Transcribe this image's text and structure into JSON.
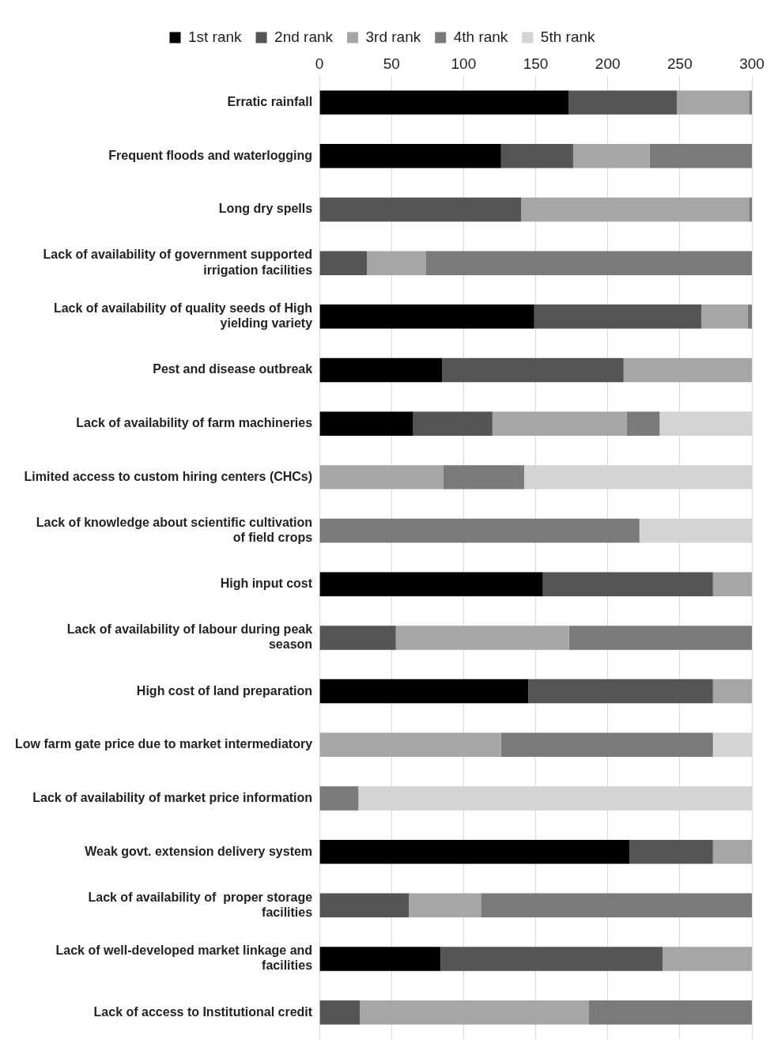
{
  "chart_data": {
    "type": "bar",
    "orientation": "horizontal",
    "stacked": true,
    "categories": [
      "Erratic rainfall",
      "Frequent floods and waterlogging",
      "Long dry spells",
      "Lack of availability of government supported irrigation facilities",
      "Lack of availability of quality seeds of High yielding variety",
      "Pest and disease outbreak",
      "Lack of availability of farm machineries",
      "Limited access to custom hiring centers (CHCs)",
      "Lack of knowledge about scientific cultivation of field crops",
      "High input cost",
      "Lack of availability of labour during peak season",
      "High cost of land preparation",
      "Low farm gate price due to market intermediatory",
      "Lack of availability of market price information",
      "Weak govt. extension delivery system",
      "Lack of availability of  proper storage facilities",
      "Lack of well-developed market linkage and facilities",
      "Lack of access to Institutional credit"
    ],
    "series": [
      {
        "name": "1st rank",
        "color": "#000000",
        "values": [
          173,
          126,
          0,
          0,
          149,
          85,
          65,
          0,
          0,
          155,
          0,
          145,
          0,
          0,
          215,
          0,
          84,
          0
        ]
      },
      {
        "name": "2nd rank",
        "color": "#555555",
        "values": [
          75,
          50,
          140,
          33,
          116,
          126,
          55,
          0,
          0,
          118,
          53,
          128,
          0,
          0,
          58,
          62,
          154,
          28
        ]
      },
      {
        "name": "3rd rank",
        "color": "#a6a6a6",
        "values": [
          50,
          53,
          158,
          41,
          32,
          89,
          93,
          86,
          0,
          27,
          120,
          27,
          126,
          0,
          27,
          50,
          62,
          159
        ]
      },
      {
        "name": "4th rank",
        "color": "#7a7a7a",
        "values": [
          2,
          71,
          2,
          226,
          3,
          0,
          23,
          56,
          222,
          0,
          127,
          0,
          147,
          27,
          0,
          188,
          0,
          113
        ]
      },
      {
        "name": "5th rank",
        "color": "#d4d4d4",
        "values": [
          0,
          0,
          0,
          0,
          0,
          0,
          64,
          158,
          78,
          0,
          0,
          0,
          27,
          273,
          0,
          0,
          0,
          0
        ]
      }
    ],
    "xlim": [
      0,
      300
    ],
    "xticks": [
      0,
      50,
      100,
      150,
      200,
      250,
      300
    ],
    "grid": "x",
    "legend": "top"
  }
}
